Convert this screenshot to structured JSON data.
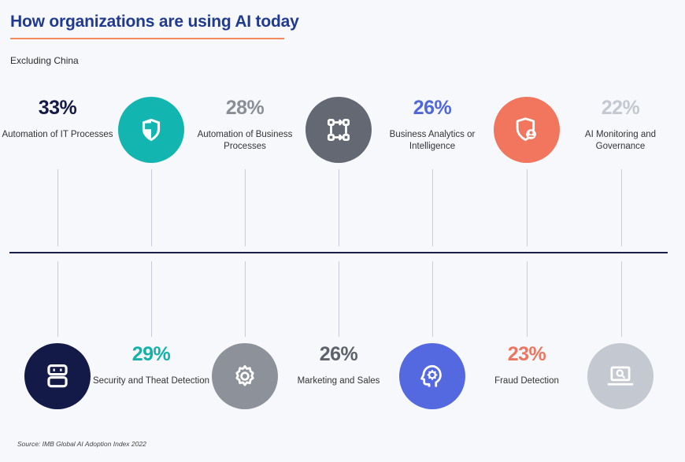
{
  "title": "How organizations are using AI today",
  "subtitle": "Excluding China",
  "source": "Source: IMB Global AI Adoption Index 2022",
  "colors": {
    "navy": "#131a48",
    "teal": "#13b5b1",
    "gray": "#636873",
    "blue": "#5469e0",
    "coral": "#f2765e",
    "lightgray": "#c4c8d0",
    "midgray": "#8d9199"
  },
  "chart_data": {
    "type": "bar",
    "categories": [
      "Automation of IT Processes",
      "Security and Theat Detection",
      "Automation of Business Processes",
      "Marketing and Sales",
      "Business Analytics or Intelligence",
      "Fraud Detection",
      "AI Monitoring and Governance"
    ],
    "values": [
      33,
      29,
      28,
      26,
      26,
      23,
      22
    ],
    "value_labels": [
      "33%",
      "29%",
      "28%",
      "26%",
      "26%",
      "23%",
      "22%"
    ]
  },
  "items": [
    {
      "pct": "33%",
      "label": "Automation of IT Processes",
      "color": "#141a45",
      "icon": "robot-icon",
      "circle_color": "#131a48"
    },
    {
      "pct": "29%",
      "label": "Security and Theat Detection",
      "color": "#14b1ab",
      "icon": "shield-icon",
      "circle_color": "#13b5b1"
    },
    {
      "pct": "28%",
      "label": "Automation of Business Processes",
      "color": "#8a8e96",
      "icon": "gear-icon",
      "circle_color": "#8d9199"
    },
    {
      "pct": "26%",
      "label": "Marketing and Sales",
      "color": "#5e626b",
      "icon": "workflow-icon",
      "circle_color": "#636873"
    },
    {
      "pct": "26%",
      "label": "Business Analytics or Intelligence",
      "color": "#5067d8",
      "icon": "head-gear-icon",
      "circle_color": "#5469e0"
    },
    {
      "pct": "23%",
      "label": "Fraud Detection",
      "color": "#ee7560",
      "icon": "shield-user-icon",
      "circle_color": "#f2765e"
    },
    {
      "pct": "22%",
      "label": "AI Monitoring and Governance",
      "color": "#c4c8d0",
      "icon": "laptop-search-icon",
      "circle_color": "#c4c8d0"
    }
  ]
}
